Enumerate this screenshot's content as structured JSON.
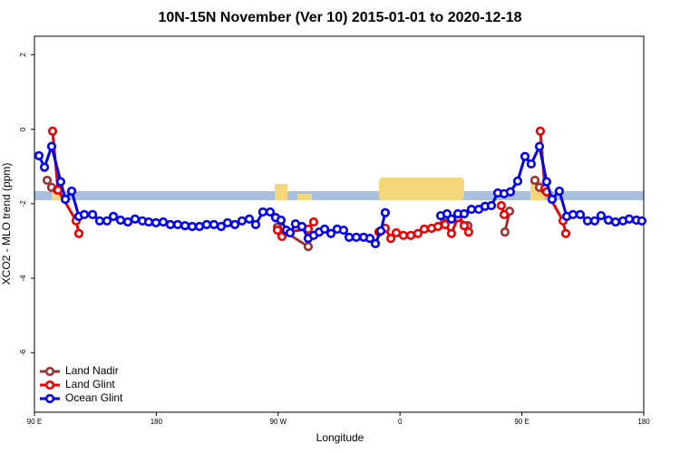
{
  "chart_data": {
    "type": "line",
    "title": "10N-15N November (Ver 10)   2015-01-01 to 2020-12-18",
    "x_label": "Longitude",
    "y_label": "XCO2 - MLO trend (ppm)",
    "xlim": [
      90,
      540
    ],
    "ylim": [
      -7.6,
      2.5
    ],
    "xticks": [
      {
        "value": 90,
        "label": "90 E"
      },
      {
        "value": 180,
        "label": "180"
      },
      {
        "value": 270,
        "label": "90 W"
      },
      {
        "value": 360,
        "label": "0"
      },
      {
        "value": 450,
        "label": "90 E"
      },
      {
        "value": 540,
        "label": "180"
      }
    ],
    "yticks": [
      -6,
      -4,
      -2,
      0,
      2
    ],
    "legend": "bottom-left",
    "series": [
      {
        "name": "Land Nadir",
        "color": "#993333",
        "x": [
          99.4,
          102.7,
          106.7,
          null,
          269.5,
          292.2,
          null,
          392.7,
          402.7,
          410.1,
          null,
          437.5,
          440.9,
          null,
          459.6,
          463.0,
          467.0
        ],
        "values": [
          -1.37,
          -1.56,
          -1.63,
          null,
          -2.63,
          -3.15,
          null,
          -2.51,
          -2.37,
          -2.59,
          null,
          -2.76,
          -2.2,
          null,
          -1.37,
          -1.56,
          -1.63
        ]
      },
      {
        "name": "Land Glint",
        "color": "#ee0000",
        "x": [
          103.4,
          107.4,
          120.8,
          122.8,
          null,
          269.5,
          272.8,
          276.1,
          292.2,
          296.2,
          null,
          344.4,
          349.1,
          353.2,
          357.2,
          362.5,
          367.9,
          373.2,
          377.9,
          383.3,
          388.0,
          393.3,
          398.0,
          402.7,
          407.4,
          410.7,
          null,
          434.8,
          436.9,
          null,
          463.6,
          467.0,
          468.3,
          480.4,
          482.4
        ],
        "values": [
          -0.05,
          -1.63,
          -2.46,
          -2.8,
          null,
          -2.71,
          -2.88,
          -2.76,
          -2.68,
          -2.49,
          null,
          -2.76,
          -2.66,
          -2.93,
          -2.78,
          -2.85,
          -2.85,
          -2.8,
          -2.68,
          -2.66,
          -2.61,
          -2.56,
          -2.8,
          -2.37,
          -2.59,
          -2.76,
          null,
          -2.05,
          -2.29,
          null,
          -0.05,
          -1.59,
          -1.68,
          -2.46,
          -2.8
        ]
      },
      {
        "name": "Ocean Glint",
        "color": "#0000ee",
        "x": [
          93.3,
          97.4,
          102.7,
          109.4,
          112.8,
          117.5,
          122.8,
          126.8,
          132.9,
          138.2,
          143.6,
          148.3,
          153.6,
          159.0,
          164.3,
          169.7,
          174.4,
          179.7,
          185.1,
          190.4,
          195.8,
          201.2,
          206.5,
          211.9,
          217.2,
          222.6,
          227.9,
          232.6,
          238.0,
          243.3,
          248.7,
          253.4,
          258.7,
          264.1,
          268.1,
          272.1,
          276.1,
          278.8,
          282.8,
          287.5,
          292.2,
          296.2,
          300.3,
          304.3,
          309.0,
          313.6,
          318.3,
          322.4,
          327.7,
          333.1,
          337.8,
          341.8,
          345.8,
          349.1,
          null,
          390.0,
          394.7,
          398.0,
          402.7,
          407.4,
          412.7,
          418.1,
          422.8,
          427.5,
          432.2,
          436.9,
          441.5,
          446.9,
          452.3,
          456.9,
          463.0,
          468.3,
          472.3,
          477.7,
          483.1,
          487.7,
          493.1,
          498.5,
          503.8,
          508.5,
          513.9,
          519.2,
          524.6,
          529.3,
          534.6,
          538.6
        ],
        "values": [
          -0.71,
          -1.02,
          -0.46,
          -1.41,
          -1.88,
          -1.66,
          -2.34,
          -2.29,
          -2.29,
          -2.46,
          -2.46,
          -2.34,
          -2.44,
          -2.49,
          -2.41,
          -2.46,
          -2.49,
          -2.51,
          -2.49,
          -2.56,
          -2.56,
          -2.59,
          -2.61,
          -2.61,
          -2.56,
          -2.56,
          -2.61,
          -2.51,
          -2.56,
          -2.46,
          -2.41,
          -2.56,
          -2.22,
          -2.22,
          -2.37,
          -2.44,
          -2.71,
          -2.78,
          -2.54,
          -2.61,
          -2.93,
          -2.85,
          -2.76,
          -2.68,
          -2.8,
          -2.68,
          -2.71,
          -2.9,
          -2.9,
          -2.9,
          -2.93,
          -3.07,
          -2.73,
          -2.24,
          null,
          -2.32,
          -2.27,
          -2.41,
          -2.27,
          -2.27,
          -2.15,
          -2.15,
          -2.07,
          -2.05,
          -1.71,
          -1.73,
          -1.68,
          -1.39,
          -0.73,
          -0.93,
          -0.46,
          -1.41,
          -1.88,
          -1.66,
          -2.34,
          -2.29,
          -2.29,
          -2.46,
          -2.46,
          -2.32,
          -2.44,
          -2.49,
          -2.46,
          -2.41,
          -2.44,
          -2.46
        ]
      }
    ]
  }
}
